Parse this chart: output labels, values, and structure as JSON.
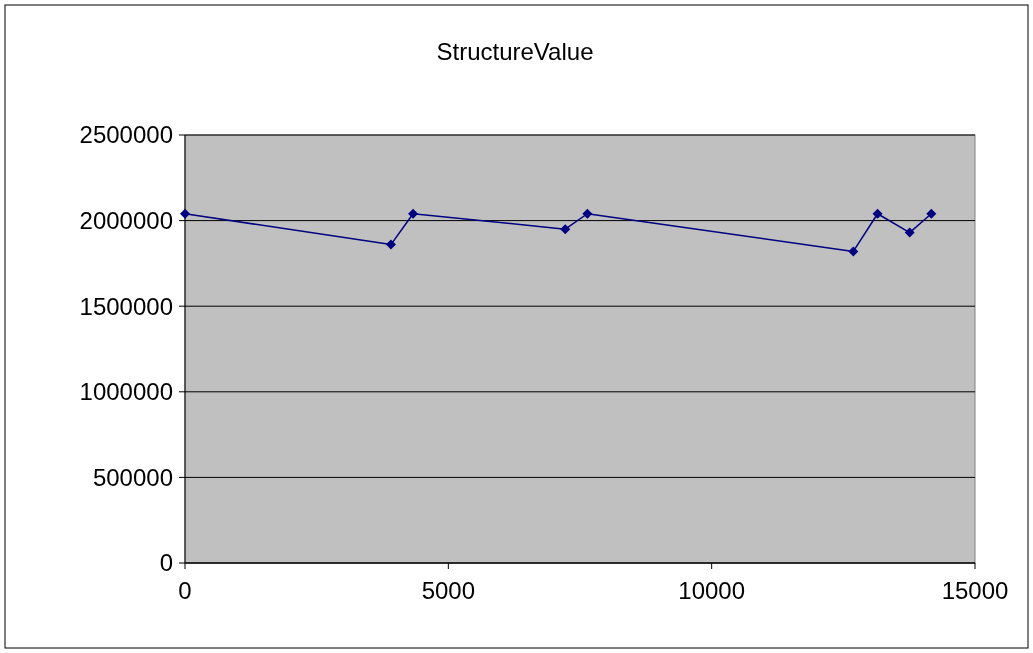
{
  "chart_data": {
    "type": "line",
    "title": "StructureValue",
    "x": [
      0,
      3910,
      4330,
      7220,
      7640,
      12690,
      13150,
      13760,
      14170
    ],
    "series": [
      {
        "color": "#000080",
        "values": [
          2040000,
          1860000,
          2040000,
          1950000,
          2040000,
          1820000,
          2040000,
          1930000,
          2040000
        ]
      }
    ],
    "xlim": [
      0,
      15000
    ],
    "xticks": [
      0,
      5000,
      10000,
      15000
    ],
    "ylim": [
      0,
      2500000
    ],
    "yticks": [
      0,
      500000,
      1000000,
      1500000,
      2000000,
      2500000
    ],
    "grid": "y",
    "marker": "diamond",
    "line_style": "solid"
  }
}
